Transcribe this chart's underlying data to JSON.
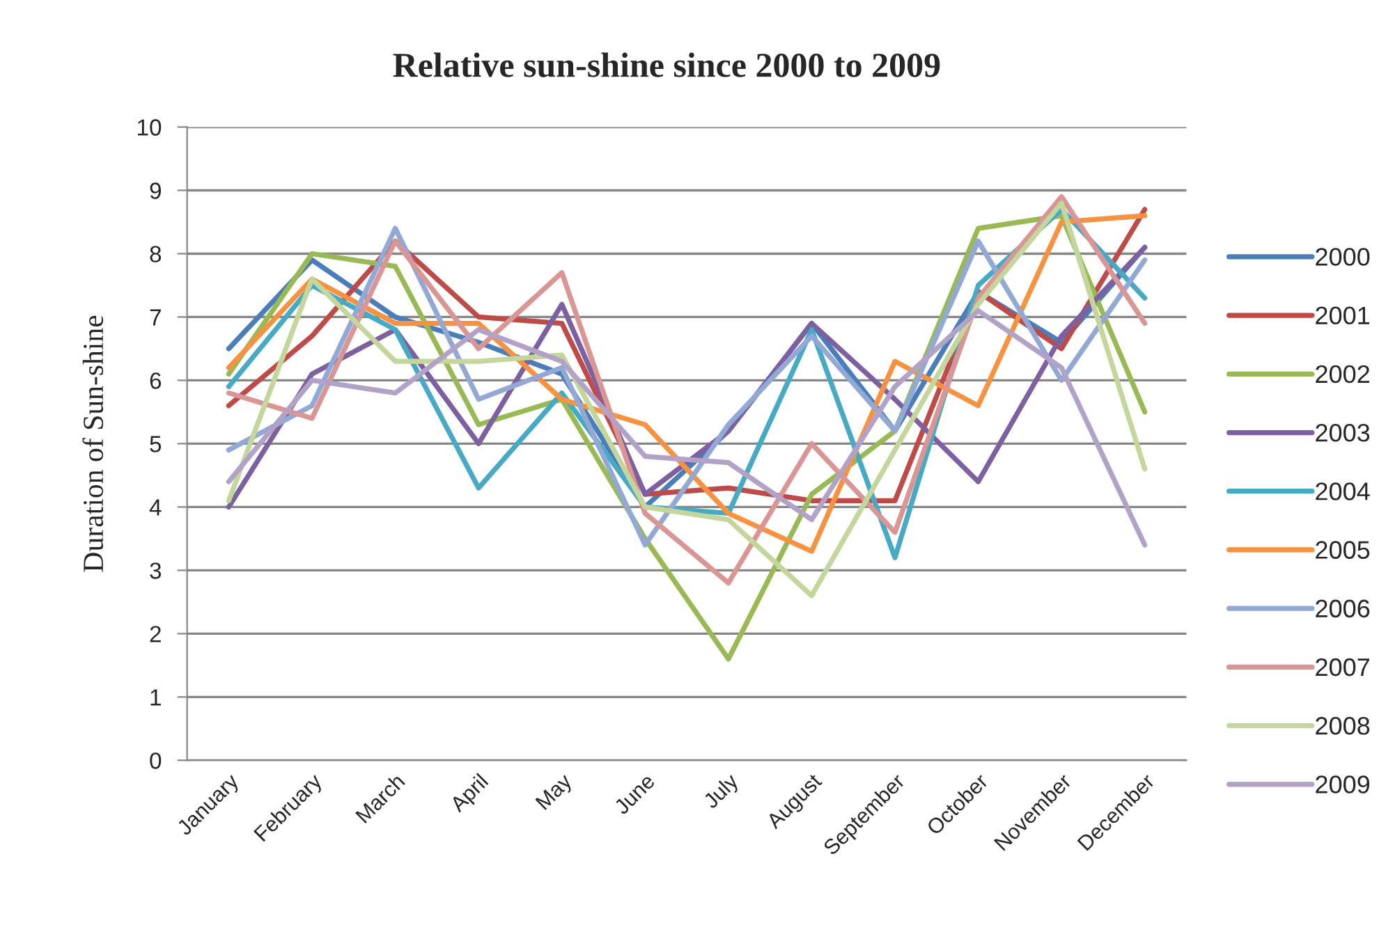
{
  "chart_data": {
    "type": "line",
    "title": "Relative sun-shine since 2000 to 2009",
    "ylabel": "Duration of Sun-shine",
    "categories": [
      "January",
      "February",
      "March",
      "April",
      "May",
      "June",
      "July",
      "August",
      "September",
      "October",
      "November",
      "December"
    ],
    "series": [
      {
        "name": "2000",
        "color": "#4a7ebb",
        "values": [
          6.5,
          7.9,
          7.0,
          6.6,
          6.1,
          4.0,
          5.2,
          6.9,
          5.2,
          7.4,
          6.6,
          8.1
        ]
      },
      {
        "name": "2001",
        "color": "#be4b48",
        "values": [
          5.6,
          6.7,
          8.2,
          7.0,
          6.9,
          4.2,
          4.3,
          4.1,
          4.1,
          7.4,
          6.5,
          8.7
        ]
      },
      {
        "name": "2002",
        "color": "#98b954",
        "values": [
          6.1,
          8.0,
          7.8,
          5.3,
          5.7,
          3.5,
          1.6,
          4.2,
          5.2,
          8.4,
          8.6,
          5.5
        ]
      },
      {
        "name": "2003",
        "color": "#7d60a0",
        "values": [
          4.0,
          6.1,
          6.8,
          5.0,
          7.2,
          4.2,
          5.2,
          6.9,
          5.7,
          4.4,
          6.7,
          8.1
        ]
      },
      {
        "name": "2004",
        "color": "#46aac5",
        "values": [
          5.9,
          7.5,
          6.8,
          4.3,
          5.8,
          4.0,
          3.9,
          6.8,
          3.2,
          7.5,
          8.7,
          7.3
        ]
      },
      {
        "name": "2005",
        "color": "#f69240",
        "values": [
          6.2,
          7.6,
          6.9,
          6.9,
          5.7,
          5.3,
          3.9,
          3.3,
          6.3,
          5.6,
          8.5,
          8.6
        ]
      },
      {
        "name": "2006",
        "color": "#92a9d5",
        "values": [
          4.9,
          5.6,
          8.4,
          5.7,
          6.2,
          3.4,
          5.3,
          6.7,
          5.2,
          8.2,
          6.0,
          7.9
        ]
      },
      {
        "name": "2007",
        "color": "#d99694",
        "values": [
          5.8,
          5.4,
          8.2,
          6.5,
          7.7,
          3.9,
          2.8,
          5.0,
          3.6,
          7.3,
          8.9,
          6.9
        ]
      },
      {
        "name": "2008",
        "color": "#c3d69b",
        "values": [
          4.1,
          7.6,
          6.3,
          6.3,
          6.4,
          4.0,
          3.8,
          2.6,
          4.9,
          7.2,
          8.8,
          4.6
        ]
      },
      {
        "name": "2009",
        "color": "#b3a2c7",
        "values": [
          4.4,
          6.0,
          5.8,
          6.8,
          6.3,
          4.8,
          4.7,
          3.8,
          5.9,
          7.1,
          6.2,
          3.4
        ]
      }
    ],
    "ylim": [
      0,
      10
    ],
    "yticks": [
      0,
      1,
      2,
      3,
      4,
      5,
      6,
      7,
      8,
      9,
      10
    ],
    "grid": "y",
    "legend": "right",
    "line_style": "solid"
  }
}
